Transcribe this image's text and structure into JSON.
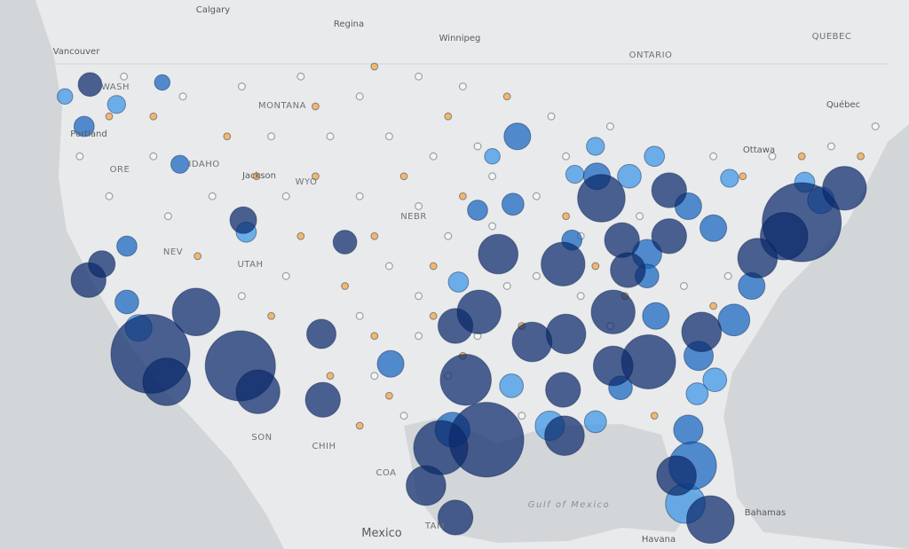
{
  "map": {
    "labels": [
      "Calgary",
      "Regina",
      "Winnipeg",
      "Vancouver",
      "ONTARIO",
      "QUEBEC",
      "Québec",
      "Ottawa",
      "WASH",
      "MONTANA",
      "IDAHO",
      "Jackson",
      "WYO",
      "NEV",
      "UTAH",
      "NEBR",
      "Portland",
      "ORE",
      "SON",
      "CHIH",
      "COA",
      "TAM",
      "Mexico",
      "Gulf of Mexico",
      "Bahamas",
      "Havana"
    ],
    "layers": [
      {
        "color": "#9aa0a6",
        "outline": true,
        "points": [
          [
            -120,
            48,
            1
          ],
          [
            -116,
            47,
            1
          ],
          [
            -112,
            47.5,
            1
          ],
          [
            -108,
            48,
            1
          ],
          [
            -104,
            47,
            1
          ],
          [
            -100,
            48,
            1
          ],
          [
            -97,
            47.5,
            1
          ],
          [
            -110,
            45,
            1
          ],
          [
            -106,
            45,
            1
          ],
          [
            -102,
            45,
            1
          ],
          [
            -99,
            44,
            1
          ],
          [
            -96,
            44.5,
            1
          ],
          [
            -118,
            44,
            1
          ],
          [
            -114,
            42,
            1
          ],
          [
            -109,
            42,
            1
          ],
          [
            -104,
            42,
            1
          ],
          [
            -100,
            41.5,
            1
          ],
          [
            -98,
            40,
            1
          ],
          [
            -102,
            38.5,
            1
          ],
          [
            -100,
            37,
            1
          ],
          [
            -104,
            36,
            1
          ],
          [
            -109,
            38,
            1
          ],
          [
            -112,
            37,
            1
          ],
          [
            -117,
            41,
            1
          ],
          [
            -121,
            42,
            1
          ],
          [
            -123,
            44,
            1
          ],
          [
            -95,
            43,
            1
          ],
          [
            -92,
            42,
            1
          ],
          [
            -90,
            44,
            1
          ],
          [
            -89,
            40,
            1
          ],
          [
            -92,
            38,
            1
          ],
          [
            -94,
            37.5,
            1
          ],
          [
            -96,
            35,
            1
          ],
          [
            -100,
            35,
            1
          ],
          [
            -98,
            33,
            1
          ],
          [
            -101,
            31,
            1
          ],
          [
            -103,
            33,
            1
          ],
          [
            -93,
            31,
            1
          ],
          [
            -87,
            35.5,
            1
          ],
          [
            -89,
            37,
            1
          ],
          [
            -85,
            41,
            1
          ],
          [
            -80,
            44,
            1
          ],
          [
            -76,
            44,
            1
          ],
          [
            -72,
            44.5,
            1
          ],
          [
            -69,
            45.5,
            1
          ],
          [
            -79,
            38,
            1
          ],
          [
            -82,
            37.5,
            1
          ],
          [
            -95,
            40.5,
            1
          ],
          [
            -91,
            46,
            1
          ],
          [
            -87,
            45.5,
            1
          ]
        ]
      },
      {
        "color": "#f5a33a",
        "outline": false,
        "points": [
          [
            -121,
            46,
            1
          ],
          [
            -118,
            46,
            1
          ],
          [
            -113,
            45,
            1
          ],
          [
            -107,
            46.5,
            1
          ],
          [
            -103,
            48.5,
            1
          ],
          [
            -98,
            46,
            1
          ],
          [
            -94,
            47,
            1
          ],
          [
            -111,
            43,
            1
          ],
          [
            -107,
            43,
            1
          ],
          [
            -101,
            43,
            1
          ],
          [
            -97,
            42,
            1
          ],
          [
            -115,
            39,
            1
          ],
          [
            -108,
            40,
            1
          ],
          [
            -103,
            40,
            1
          ],
          [
            -99,
            38.5,
            1
          ],
          [
            -105,
            37.5,
            1
          ],
          [
            -110,
            36,
            1
          ],
          [
            -103,
            35,
            1
          ],
          [
            -99,
            36,
            1
          ],
          [
            -106,
            33,
            1
          ],
          [
            -102,
            32,
            1
          ],
          [
            -97,
            34,
            1
          ],
          [
            -93,
            35.5,
            1
          ],
          [
            -90,
            41,
            1
          ],
          [
            -88,
            38.5,
            1
          ],
          [
            -86,
            37,
            1
          ],
          [
            -78,
            43,
            1
          ],
          [
            -74,
            44,
            1
          ],
          [
            -70,
            44,
            1
          ],
          [
            -80,
            36.5,
            1
          ],
          [
            -84,
            31,
            1
          ],
          [
            -104,
            30.5,
            1
          ]
        ]
      },
      {
        "color": "#3a96e6",
        "outline": false,
        "points": [
          [
            -81.9,
            26.6,
            200
          ],
          [
            -78.9,
            42.9,
            30
          ],
          [
            -97.3,
            37.7,
            40
          ],
          [
            -73.8,
            42.7,
            40
          ],
          [
            -72.7,
            41.8,
            80
          ],
          [
            -85.7,
            43,
            60
          ],
          [
            -89.4,
            43.1,
            30
          ],
          [
            -120.5,
            46.6,
            30
          ],
          [
            -119,
            35.4,
            80
          ],
          [
            -88,
            44.5,
            30
          ],
          [
            -79.9,
            32.8,
            60
          ],
          [
            -81.1,
            32.1,
            50
          ],
          [
            -88,
            30.7,
            50
          ],
          [
            -91.1,
            30.5,
            100
          ],
          [
            -93.7,
            32.5,
            60
          ],
          [
            -111.7,
            40.2,
            40
          ],
          [
            -124,
            47,
            20
          ],
          [
            -84,
            44,
            40
          ],
          [
            -95,
            44,
            20
          ]
        ]
      },
      {
        "color": "#1565c0",
        "outline": false,
        "points": [
          [
            -93.3,
            45,
            80
          ],
          [
            -87.9,
            43,
            80
          ],
          [
            -81.7,
            41.5,
            80
          ],
          [
            -80,
            40.4,
            80
          ],
          [
            -78.6,
            35.8,
            120
          ],
          [
            -81,
            34,
            100
          ],
          [
            -81.7,
            30.3,
            100
          ],
          [
            -81.4,
            28.5,
            300
          ],
          [
            -97.7,
            30.3,
            150
          ],
          [
            -101.9,
            33.6,
            80
          ],
          [
            -96,
            41.3,
            40
          ],
          [
            -93.6,
            41.6,
            50
          ],
          [
            -119.8,
            36.7,
            60
          ],
          [
            -119.8,
            39.5,
            40
          ],
          [
            -116.2,
            43.6,
            30
          ],
          [
            -122.7,
            45.5,
            40
          ],
          [
            -117.4,
            47.7,
            20
          ],
          [
            -77.4,
            37.5,
            80
          ],
          [
            -83.9,
            36,
            80
          ],
          [
            -84.5,
            39.1,
            100
          ],
          [
            -84.5,
            38,
            60
          ],
          [
            -89.6,
            39.8,
            40
          ],
          [
            -86.3,
            32.4,
            60
          ]
        ]
      },
      {
        "color": "#0b2a6b",
        "outline": false,
        "points": [
          [
            -118.2,
            34.1,
            900
          ],
          [
            -117.1,
            32.7,
            300
          ],
          [
            -112.1,
            33.5,
            700
          ],
          [
            -110.9,
            32.2,
            250
          ],
          [
            -115.1,
            36.2,
            300
          ],
          [
            -122.4,
            37.8,
            150
          ],
          [
            -121.5,
            38.6,
            80
          ],
          [
            -95.4,
            29.8,
            800
          ],
          [
            -98.5,
            29.4,
            400
          ],
          [
            -96.8,
            32.8,
            350
          ],
          [
            -106.5,
            31.8,
            150
          ],
          [
            -80.2,
            25.8,
            300
          ],
          [
            -82.5,
            28,
            200
          ],
          [
            -84.4,
            33.7,
            400
          ],
          [
            -74,
            40.7,
            900
          ],
          [
            -75.2,
            40,
            300
          ],
          [
            -87.6,
            41.9,
            300
          ],
          [
            -83,
            42.3,
            150
          ],
          [
            -86.8,
            36.2,
            250
          ],
          [
            -90,
            35.1,
            200
          ],
          [
            -90.1,
            30,
            200
          ],
          [
            -80.8,
            35.2,
            200
          ],
          [
            -83,
            40,
            150
          ],
          [
            -71.1,
            42.4,
            250
          ],
          [
            -77,
            38.9,
            200
          ],
          [
            -97.5,
            35.5,
            150
          ],
          [
            -95.9,
            36.2,
            250
          ],
          [
            -106.6,
            35.1,
            100
          ],
          [
            -111.9,
            40.8,
            80
          ],
          [
            -105,
            39.7,
            60
          ],
          [
            -122.3,
            47.6,
            60
          ],
          [
            -94.6,
            39.1,
            200
          ],
          [
            -90.2,
            38.6,
            250
          ],
          [
            -86.8,
            33.5,
            200
          ],
          [
            -90.2,
            32.3,
            150
          ],
          [
            -97.5,
            25.9,
            150
          ],
          [
            -99.5,
            27.5,
            200
          ],
          [
            -92.3,
            34.7,
            200
          ],
          [
            -86.2,
            39.8,
            150
          ],
          [
            -85.8,
            38.3,
            150
          ]
        ]
      }
    ]
  }
}
